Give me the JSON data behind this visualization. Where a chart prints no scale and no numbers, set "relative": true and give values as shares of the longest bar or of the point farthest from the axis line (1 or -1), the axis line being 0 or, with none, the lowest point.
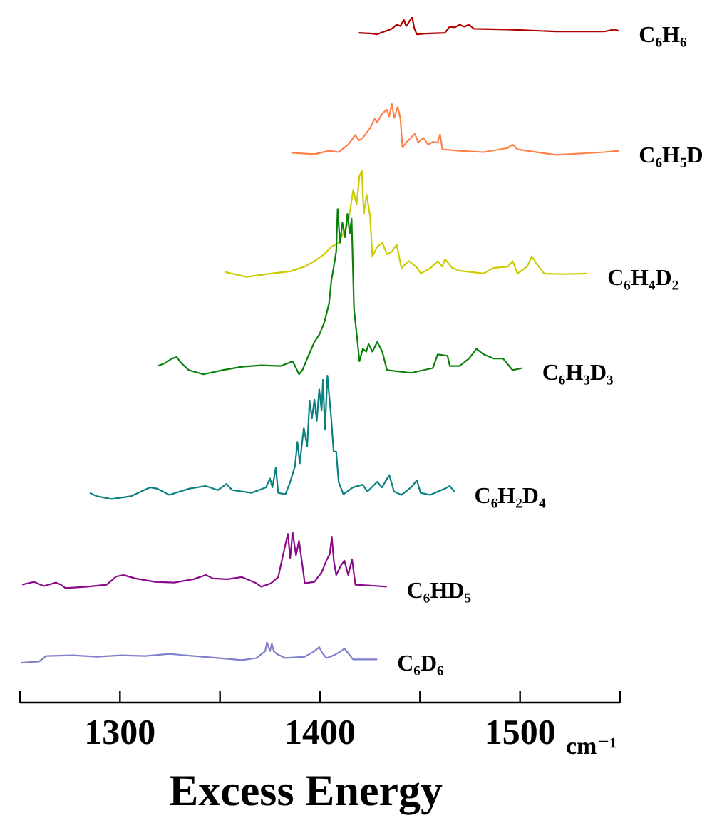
{
  "chart_data": {
    "type": "line",
    "relative": true,
    "xlabel": "Excess Energy",
    "annotations": [
      "cm⁻¹"
    ],
    "xlim": [
      1250,
      1550
    ],
    "xticks": [
      {
        "value": 1250,
        "label": null
      },
      1300,
      {
        "value": 1350,
        "label": null
      },
      1400,
      {
        "value": 1450,
        "label": null
      },
      1500,
      {
        "value": 1550,
        "label": null
      }
    ],
    "series": [
      {
        "name": "C₆H₆",
        "color": "#b00000",
        "x": [
          1419.4,
          1426.2,
          1428.6,
          1432.2,
          1435.9,
          1438.3,
          1440.2,
          1441.9,
          1443.1,
          1444.3,
          1446.0,
          1447.2,
          1448.4,
          1452.8,
          1462.4,
          1464.8,
          1467.3,
          1469.7,
          1472.1,
          1474.5,
          1476.9,
          1493.8,
          1518.0,
          1542.1,
          1547.0,
          1549.4
        ],
        "values": [
          0.977,
          0.976,
          0.975,
          0.979,
          0.983,
          0.989,
          0.987,
          0.996,
          0.987,
          0.992,
          1.0,
          0.983,
          0.975,
          0.976,
          0.977,
          0.986,
          0.985,
          0.989,
          0.986,
          0.989,
          0.983,
          0.982,
          0.979,
          0.979,
          0.982,
          0.98
        ]
      },
      {
        "name": "C₆H₅D",
        "color": "#ff8048",
        "x": [
          1385.6,
          1397.2,
          1404.5,
          1409.3,
          1414.1,
          1417.7,
          1419.4,
          1421.4,
          1425.0,
          1427.4,
          1428.6,
          1431.0,
          1433.4,
          1434.6,
          1435.9,
          1437.1,
          1438.8,
          1440.2,
          1441.2,
          1443.1,
          1445.5,
          1447.4,
          1449.1,
          1451.6,
          1454.0,
          1456.4,
          1458.8,
          1460.0,
          1461.2,
          1469.7,
          1481.8,
          1493.8,
          1496.2,
          1498.7,
          1518.0,
          1542.1,
          1549.4
        ],
        "values": [
          0.802,
          0.8,
          0.805,
          0.803,
          0.814,
          0.828,
          0.82,
          0.824,
          0.838,
          0.852,
          0.846,
          0.859,
          0.865,
          0.855,
          0.873,
          0.853,
          0.869,
          0.852,
          0.81,
          0.817,
          0.824,
          0.83,
          0.817,
          0.824,
          0.814,
          0.818,
          0.817,
          0.829,
          0.807,
          0.805,
          0.803,
          0.809,
          0.814,
          0.807,
          0.799,
          0.803,
          0.805
        ]
      },
      {
        "name": "C₆H₄D₂",
        "color": "#cccc00",
        "x": [
          1352.6,
          1363.4,
          1375.5,
          1385.2,
          1392.4,
          1397.2,
          1402.1,
          1405.7,
          1409.3,
          1411.7,
          1414.1,
          1416.6,
          1418.3,
          1419.7,
          1420.9,
          1421.9,
          1423.3,
          1425.0,
          1426.2,
          1428.6,
          1431.1,
          1433.5,
          1435.9,
          1438.3,
          1440.7,
          1444.3,
          1448.0,
          1450.4,
          1455.2,
          1458.8,
          1461.2,
          1462.5,
          1466.1,
          1469.7,
          1481.8,
          1486.6,
          1493.9,
          1496.3,
          1498.7,
          1503.5,
          1505.9,
          1508.3,
          1512.0,
          1520.4,
          1533.7
        ],
        "values": [
          0.628,
          0.621,
          0.626,
          0.629,
          0.636,
          0.644,
          0.654,
          0.665,
          0.671,
          0.685,
          0.7,
          0.748,
          0.727,
          0.768,
          0.776,
          0.713,
          0.741,
          0.71,
          0.651,
          0.665,
          0.671,
          0.654,
          0.658,
          0.668,
          0.634,
          0.644,
          0.636,
          0.626,
          0.634,
          0.644,
          0.636,
          0.647,
          0.634,
          0.63,
          0.626,
          0.634,
          0.636,
          0.644,
          0.626,
          0.636,
          0.651,
          0.64,
          0.626,
          0.625,
          0.626
        ]
      },
      {
        "name": "C₆H₃D₃",
        "color": "#0a820a",
        "x": [
          1318.7,
          1322.4,
          1326.0,
          1328.4,
          1330.1,
          1334.4,
          1341.7,
          1351.3,
          1361.0,
          1370.7,
          1380.3,
          1386.4,
          1389.5,
          1391.2,
          1393.6,
          1397.2,
          1399.7,
          1402.1,
          1404.5,
          1405.7,
          1406.9,
          1408.1,
          1408.8,
          1410.0,
          1411.2,
          1412.5,
          1413.7,
          1414.9,
          1415.8,
          1417.0,
          1418.5,
          1419.7,
          1421.4,
          1423.1,
          1424.3,
          1426.2,
          1428.6,
          1431.1,
          1433.5,
          1445.5,
          1456.4,
          1458.8,
          1463.7,
          1464.9,
          1469.7,
          1474.5,
          1478.2,
          1481.8,
          1486.6,
          1491.5,
          1496.3,
          1501.1
        ],
        "values": [
          0.491,
          0.495,
          0.502,
          0.504,
          0.497,
          0.485,
          0.479,
          0.485,
          0.49,
          0.492,
          0.491,
          0.498,
          0.479,
          0.485,
          0.502,
          0.526,
          0.537,
          0.554,
          0.582,
          0.616,
          0.636,
          0.658,
          0.72,
          0.671,
          0.7,
          0.679,
          0.713,
          0.685,
          0.706,
          0.574,
          0.533,
          0.498,
          0.516,
          0.512,
          0.523,
          0.512,
          0.526,
          0.512,
          0.485,
          0.481,
          0.488,
          0.508,
          0.506,
          0.491,
          0.491,
          0.502,
          0.516,
          0.508,
          0.502,
          0.502,
          0.485,
          0.488
        ]
      },
      {
        "name": "C₆H₂D₄",
        "color": "#0a8080",
        "x": [
          1284.9,
          1288.5,
          1295.7,
          1305.4,
          1315.0,
          1318.7,
          1324.7,
          1334.4,
          1342.8,
          1348.9,
          1353.2,
          1356.1,
          1365.8,
          1373.0,
          1375.0,
          1376.2,
          1377.9,
          1379.1,
          1382.7,
          1385.1,
          1387.5,
          1388.7,
          1389.9,
          1391.9,
          1393.6,
          1394.8,
          1396.0,
          1397.2,
          1398.4,
          1399.6,
          1400.8,
          1401.5,
          1402.5,
          1403.7,
          1405.6,
          1406.8,
          1408.1,
          1409.3,
          1411.7,
          1416.5,
          1421.3,
          1423.7,
          1428.6,
          1431.0,
          1434.6,
          1437.0,
          1440.7,
          1445.5,
          1448.4,
          1450.3,
          1455.1,
          1462.4,
          1464.8,
          1467.2
        ],
        "values": [
          0.306,
          0.301,
          0.297,
          0.301,
          0.314,
          0.312,
          0.303,
          0.312,
          0.316,
          0.31,
          0.319,
          0.31,
          0.306,
          0.314,
          0.327,
          0.314,
          0.343,
          0.306,
          0.304,
          0.322,
          0.345,
          0.38,
          0.349,
          0.401,
          0.374,
          0.44,
          0.415,
          0.442,
          0.411,
          0.457,
          0.426,
          0.471,
          0.398,
          0.477,
          0.415,
          0.366,
          0.366,
          0.322,
          0.304,
          0.314,
          0.318,
          0.308,
          0.322,
          0.314,
          0.332,
          0.308,
          0.303,
          0.314,
          0.324,
          0.306,
          0.303,
          0.312,
          0.316,
          0.308
        ]
      },
      {
        "name": "C₆HD₅",
        "color": "#8a0a8a",
        "x": [
          1251.1,
          1257.1,
          1261.9,
          1268.0,
          1270.4,
          1272.8,
          1283.7,
          1293.3,
          1298.2,
          1301.8,
          1307.8,
          1317.5,
          1327.2,
          1336.8,
          1342.9,
          1346.5,
          1353.7,
          1361.0,
          1368.2,
          1370.6,
          1375.5,
          1379.1,
          1381.5,
          1383.9,
          1385.1,
          1386.3,
          1388.0,
          1389.5,
          1391.2,
          1392.4,
          1397.2,
          1400.8,
          1403.2,
          1404.9,
          1405.9,
          1406.9,
          1408.1,
          1410.5,
          1412.2,
          1414.1,
          1416.0,
          1417.7,
          1423.8,
          1433.4
        ],
        "values": [
          0.172,
          0.176,
          0.17,
          0.175,
          0.172,
          0.167,
          0.169,
          0.172,
          0.184,
          0.186,
          0.181,
          0.176,
          0.175,
          0.18,
          0.186,
          0.181,
          0.18,
          0.183,
          0.174,
          0.169,
          0.174,
          0.183,
          0.215,
          0.246,
          0.211,
          0.248,
          0.215,
          0.236,
          0.2,
          0.174,
          0.176,
          0.19,
          0.207,
          0.217,
          0.242,
          0.207,
          0.186,
          0.2,
          0.207,
          0.186,
          0.209,
          0.172,
          0.171,
          0.169
        ]
      },
      {
        "name": "C₆D₆",
        "color": "#8080cc",
        "x": [
          1250.5,
          1259.5,
          1263.1,
          1276.4,
          1288.5,
          1300.6,
          1312.7,
          1324.7,
          1336.8,
          1348.9,
          1361.0,
          1368.2,
          1372.6,
          1373.5,
          1375.0,
          1375.9,
          1376.9,
          1378.4,
          1382.7,
          1392.4,
          1397.2,
          1399.6,
          1400.8,
          1403.2,
          1406.9,
          1410.5,
          1412.2,
          1414.1,
          1416.5,
          1428.6
        ],
        "values": [
          0.058,
          0.06,
          0.068,
          0.069,
          0.067,
          0.069,
          0.068,
          0.071,
          0.068,
          0.065,
          0.062,
          0.065,
          0.075,
          0.088,
          0.075,
          0.086,
          0.075,
          0.071,
          0.065,
          0.067,
          0.075,
          0.081,
          0.074,
          0.065,
          0.069,
          0.075,
          0.079,
          0.072,
          0.063,
          0.063
        ]
      }
    ]
  }
}
